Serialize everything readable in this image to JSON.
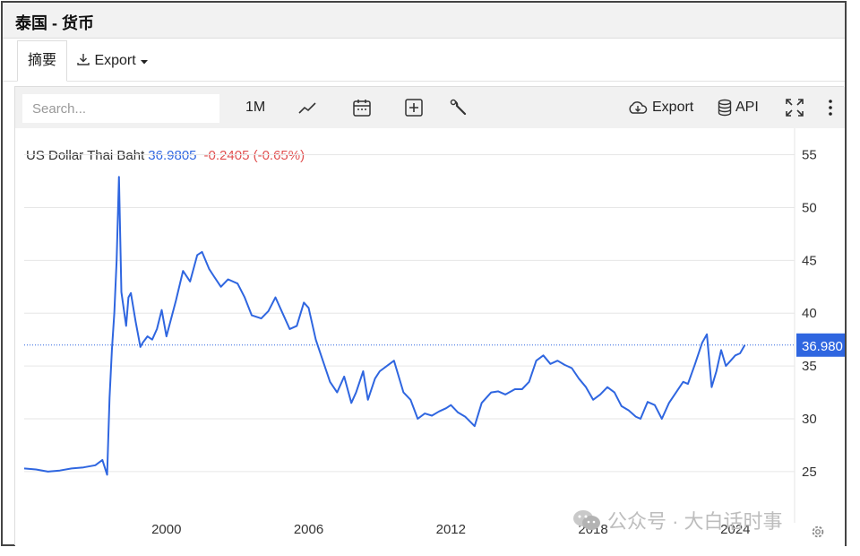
{
  "window": {
    "title": "泰国 - 货币"
  },
  "tabs": {
    "summary_label": "摘要",
    "export_label": "Export"
  },
  "toolbar": {
    "search_placeholder": "Search...",
    "interval_label": "1M",
    "export_label": "Export",
    "api_label": "API",
    "icons": [
      "line-chart-icon",
      "calendar-icon",
      "add-icon",
      "wrench-icon",
      "cloud-download-icon",
      "database-icon",
      "fullscreen-icon",
      "more-vertical-icon"
    ]
  },
  "legend": {
    "series_name": "US Dollar Thai Baht",
    "last_value": "36.9805",
    "change": "-0.2405 (-0.65%)"
  },
  "colors": {
    "series": "#2f66e0",
    "negative": "#e05050",
    "last_badge": "#2f66e0",
    "grid": "#e6e6e6"
  },
  "watermark": {
    "text": "公众号 · 大白话时事"
  },
  "chart_data": {
    "type": "line",
    "title": "",
    "xlabel": "",
    "ylabel": "",
    "x_ticks": [
      "2000",
      "2006",
      "2012",
      "2018",
      "2024"
    ],
    "y_ticks": [
      "25",
      "30",
      "35",
      "40",
      "45",
      "50",
      "55"
    ],
    "xlim": [
      1994.0,
      2026.5
    ],
    "ylim": [
      21.0,
      57.0
    ],
    "last_value_label": "36.980",
    "grid": true,
    "series": [
      {
        "x": [
          1994.0,
          1994.5,
          1995.0,
          1995.5,
          1996.0,
          1996.5,
          1997.0,
          1997.3,
          1997.5,
          1997.6,
          1997.7,
          1997.8,
          1997.9,
          1998.0,
          1998.1,
          1998.3,
          1998.4,
          1998.5,
          1998.7,
          1998.9,
          1999.0,
          1999.2,
          1999.4,
          1999.6,
          1999.8,
          2000.0,
          2000.2,
          2000.4,
          2000.7,
          2001.0,
          2001.3,
          2001.5,
          2001.8,
          2002.0,
          2002.3,
          2002.6,
          2003.0,
          2003.3,
          2003.6,
          2004.0,
          2004.3,
          2004.6,
          2004.9,
          2005.2,
          2005.5,
          2005.8,
          2006.0,
          2006.3,
          2006.6,
          2006.9,
          2007.2,
          2007.5,
          2007.8,
          2008.0,
          2008.3,
          2008.5,
          2008.8,
          2009.0,
          2009.3,
          2009.6,
          2010.0,
          2010.3,
          2010.6,
          2010.9,
          2011.2,
          2011.5,
          2011.8,
          2012.0,
          2012.3,
          2012.6,
          2013.0,
          2013.3,
          2013.7,
          2014.0,
          2014.3,
          2014.7,
          2015.0,
          2015.3,
          2015.6,
          2015.9,
          2016.2,
          2016.5,
          2016.8,
          2017.1,
          2017.4,
          2017.7,
          2018.0,
          2018.3,
          2018.6,
          2018.9,
          2019.2,
          2019.5,
          2019.8,
          2020.0,
          2020.3,
          2020.6,
          2020.9,
          2021.2,
          2021.5,
          2021.8,
          2022.0,
          2022.3,
          2022.6,
          2022.8,
          2023.0,
          2023.2,
          2023.4,
          2023.6,
          2023.8,
          2024.0,
          2024.2,
          2024.4
        ],
        "y": [
          25.3,
          25.2,
          25.0,
          25.1,
          25.3,
          25.4,
          25.6,
          26.1,
          24.7,
          32.0,
          36.5,
          40.0,
          45.0,
          52.9,
          42.0,
          38.8,
          41.5,
          41.9,
          39.2,
          36.8,
          37.2,
          37.8,
          37.5,
          38.5,
          40.3,
          37.8,
          39.5,
          41.2,
          44.0,
          43.0,
          45.5,
          45.8,
          44.2,
          43.5,
          42.5,
          43.2,
          42.8,
          41.5,
          39.8,
          39.5,
          40.2,
          41.5,
          40.0,
          38.5,
          38.8,
          41.0,
          40.5,
          37.5,
          35.5,
          33.5,
          32.5,
          34.0,
          31.5,
          32.5,
          34.5,
          31.8,
          33.8,
          34.5,
          35.0,
          35.5,
          32.5,
          31.8,
          30.0,
          30.5,
          30.3,
          30.7,
          31.0,
          31.3,
          30.6,
          30.2,
          29.3,
          31.5,
          32.5,
          32.6,
          32.3,
          32.8,
          32.8,
          33.5,
          35.5,
          36.0,
          35.2,
          35.5,
          35.1,
          34.8,
          33.8,
          33.0,
          31.8,
          32.3,
          33.0,
          32.5,
          31.2,
          30.8,
          30.2,
          30.0,
          31.6,
          31.3,
          30.0,
          31.5,
          32.5,
          33.5,
          33.3,
          35.2,
          37.2,
          38.0,
          33.0,
          34.5,
          36.5,
          35.0,
          35.5,
          36.0,
          36.2,
          36.98
        ]
      }
    ]
  }
}
